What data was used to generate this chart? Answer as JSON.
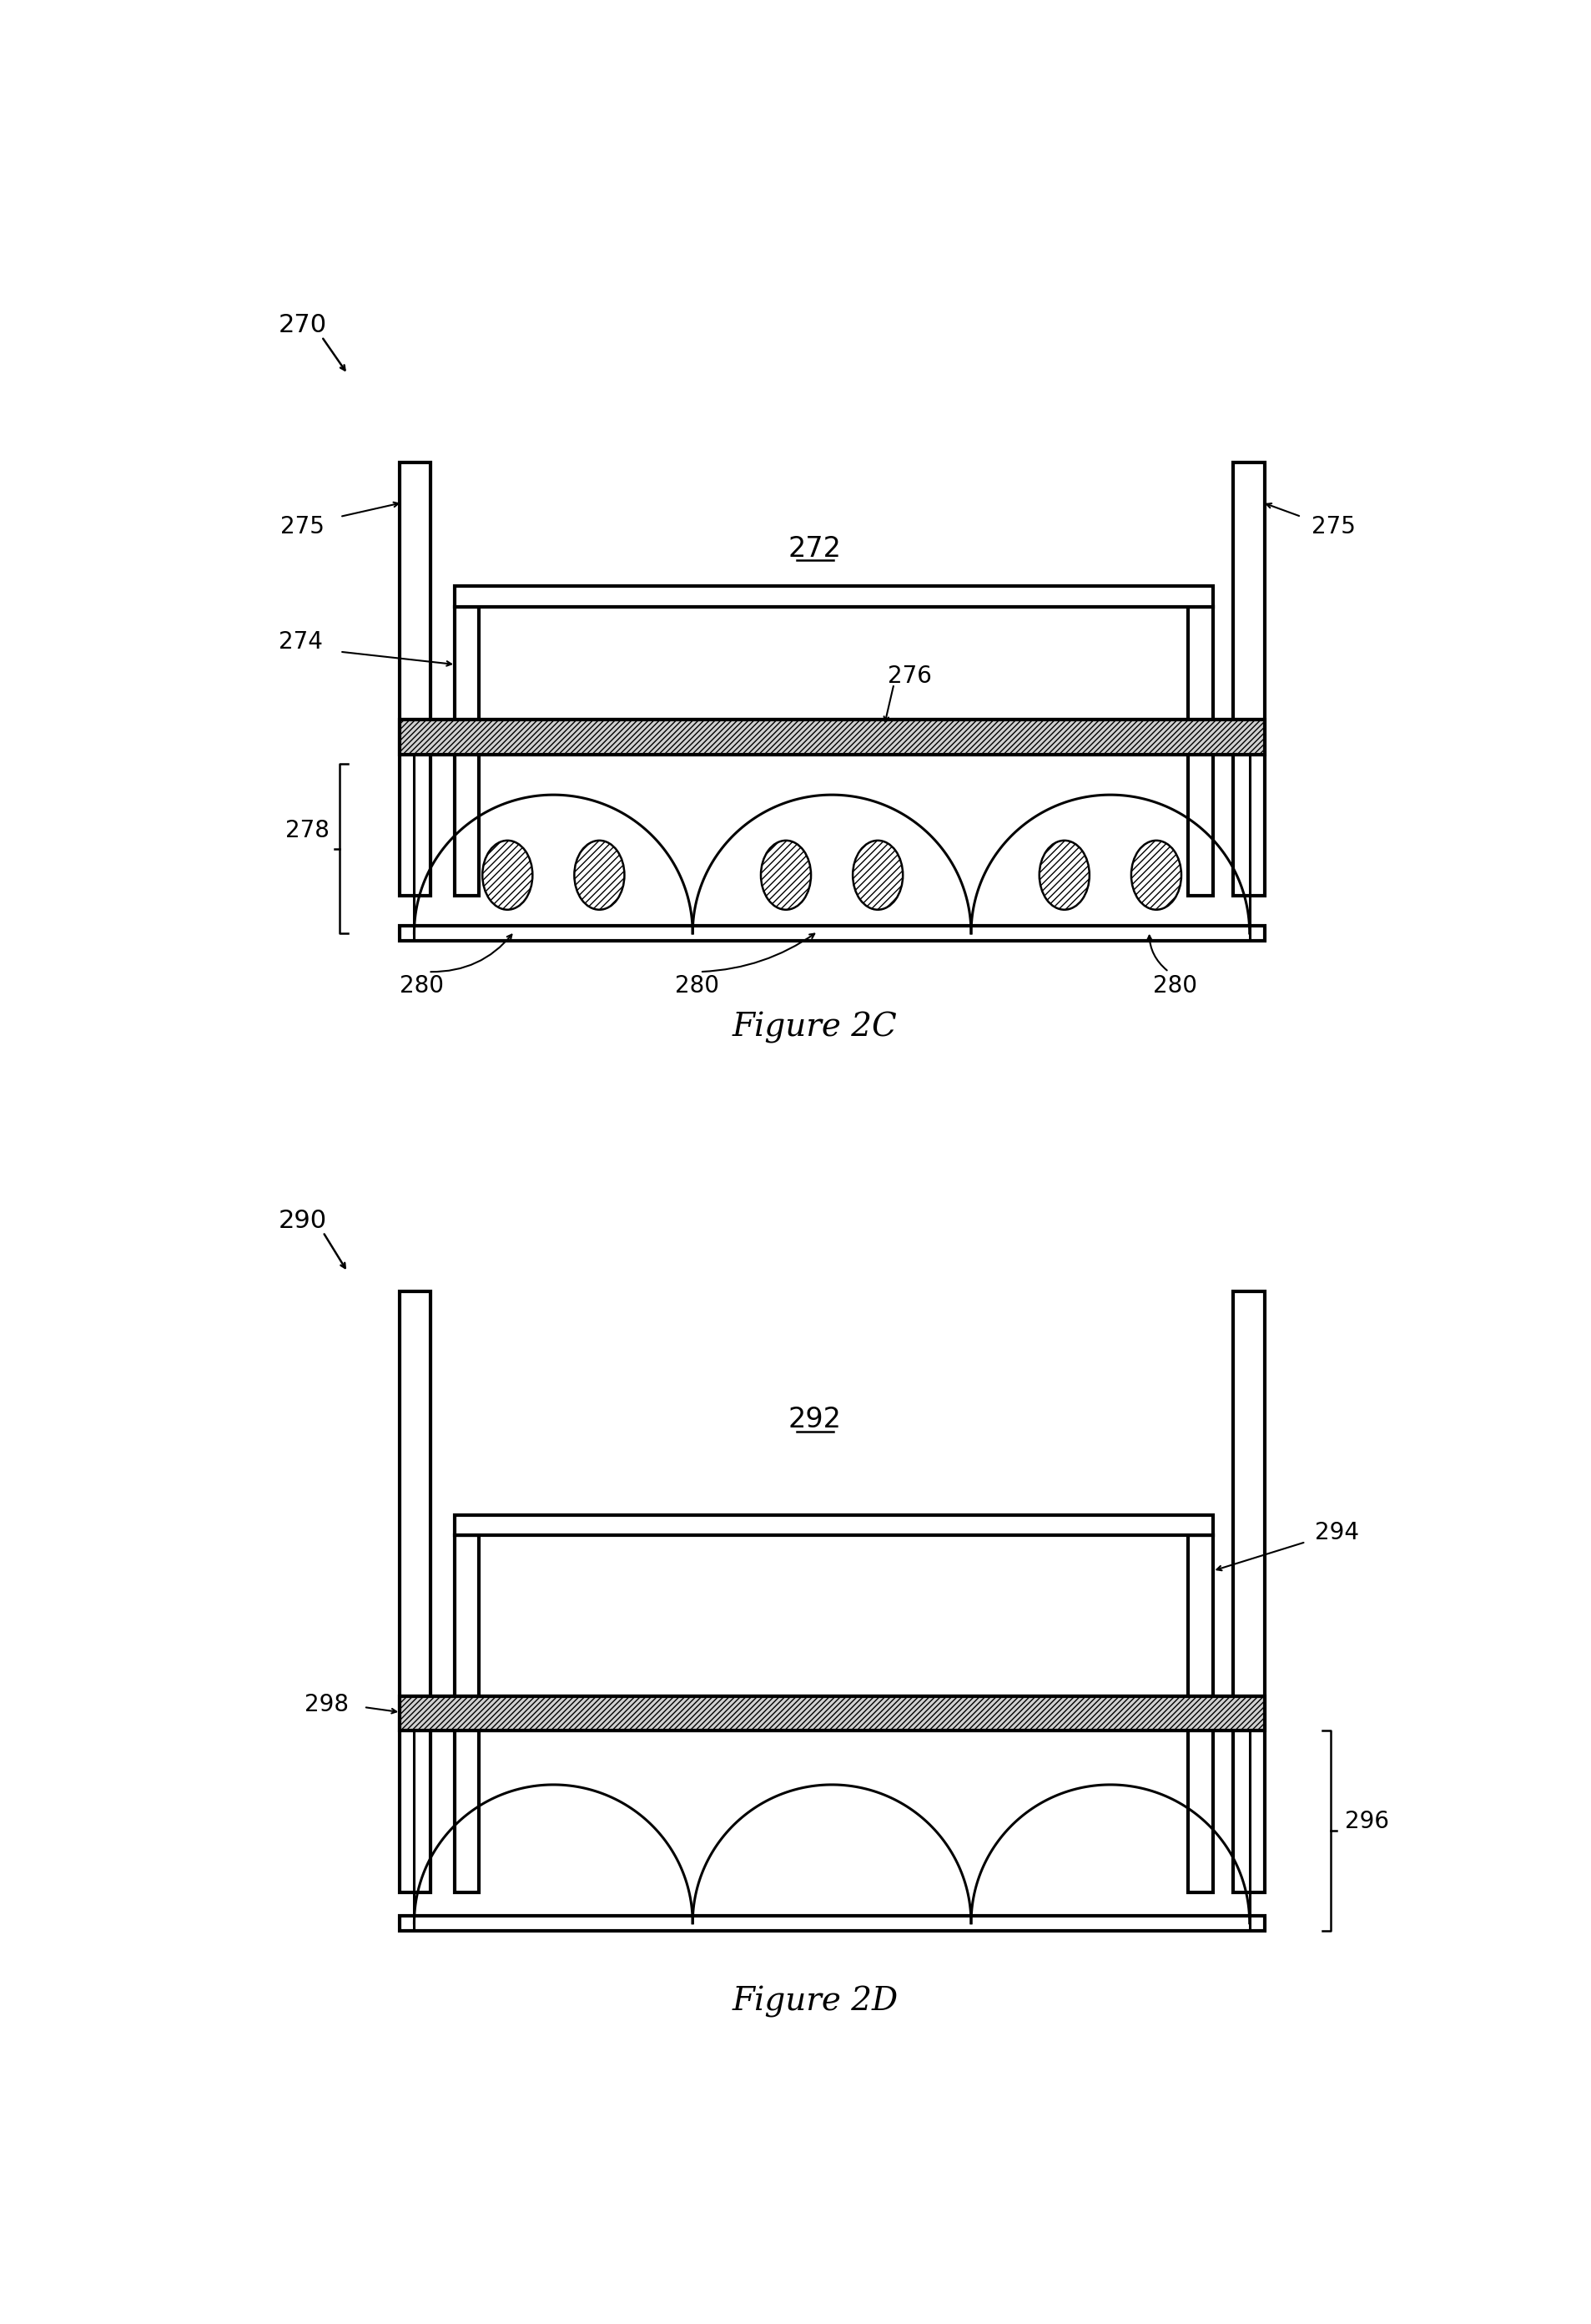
{
  "fig_width": 19.07,
  "fig_height": 27.84,
  "bg_color": "#ffffff",
  "line_color": "#000000",
  "figure2C": {
    "label": "270",
    "caption": "Figure 2C",
    "label_272": "272",
    "label_274": "274",
    "label_275_left": "275",
    "label_275_right": "275",
    "label_276": "276",
    "label_278": "278",
    "label_280_list": [
      "280",
      "280",
      "280"
    ]
  },
  "figure2D": {
    "label": "290",
    "caption": "Figure 2D",
    "label_292": "292",
    "label_294": "294",
    "label_296": "296",
    "label_298": "298"
  }
}
